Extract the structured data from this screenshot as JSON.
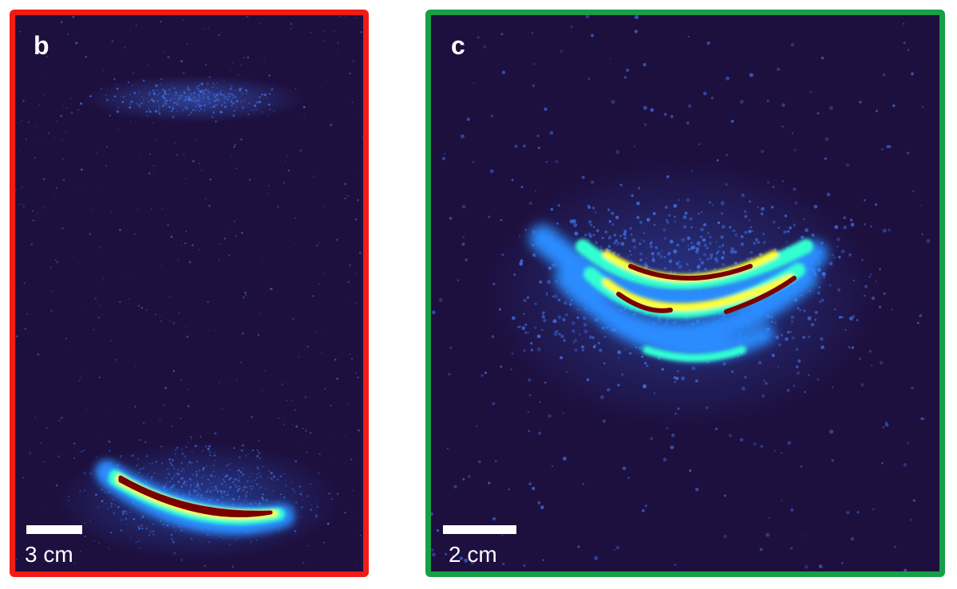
{
  "panels": [
    {
      "label": "b",
      "scale_label": "3 cm",
      "frame_color": "#f21b16"
    },
    {
      "label": "c",
      "scale_label": "2 cm",
      "frame_color": "#18a048"
    }
  ],
  "colors": {
    "background": "#1d0f3e",
    "speckle": "#3f6fe0",
    "low": "#2a8cff",
    "mid": "#33ffd2",
    "high": "#ffff33",
    "peak": "#7a0000"
  }
}
